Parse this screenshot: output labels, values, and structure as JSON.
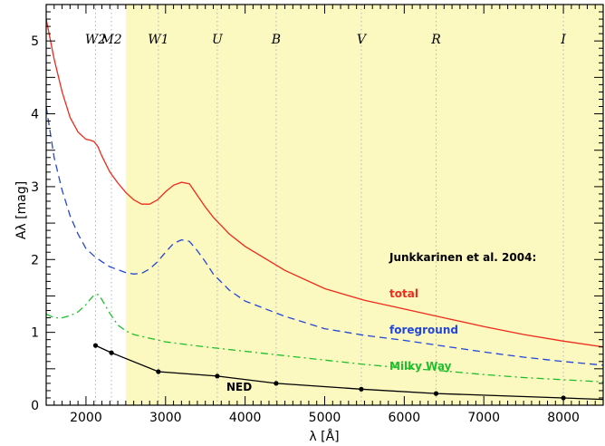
{
  "chart_data": {
    "type": "line",
    "xlabel": "λ [Å]",
    "ylabel": "Aλ [mag]",
    "xlim": [
      1500,
      8500
    ],
    "ylim": [
      0,
      5.5
    ],
    "x_ticks": [
      2000,
      3000,
      4000,
      5000,
      6000,
      7000,
      8000
    ],
    "y_ticks": [
      0,
      1,
      2,
      3,
      4,
      5
    ],
    "shaded_region": {
      "x": [
        2500,
        8500
      ],
      "color": "#fbf8c0"
    },
    "filter_bands": [
      {
        "label": "W2",
        "x": 2120
      },
      {
        "label": "M2",
        "x": 2320
      },
      {
        "label": "W1",
        "x": 2910
      },
      {
        "label": "U",
        "x": 3650
      },
      {
        "label": "B",
        "x": 4390
      },
      {
        "label": "V",
        "x": 5460
      },
      {
        "label": "R",
        "x": 6400
      },
      {
        "label": "I",
        "x": 8000
      }
    ],
    "annotations": {
      "reference": "Junkkarinen et al. 2004:",
      "ned": "NED"
    },
    "series": [
      {
        "name": "total",
        "color": "#ee2b1c",
        "dash": "solid",
        "x": [
          1500,
          1600,
          1700,
          1800,
          1900,
          2000,
          2050,
          2100,
          2150,
          2200,
          2300,
          2400,
          2500,
          2600,
          2700,
          2800,
          2900,
          3000,
          3100,
          3200,
          3300,
          3400,
          3500,
          3600,
          3800,
          4000,
          4500,
          5000,
          5500,
          6000,
          6500,
          7000,
          7500,
          8000,
          8500
        ],
        "values": [
          5.3,
          4.75,
          4.3,
          3.95,
          3.75,
          3.65,
          3.64,
          3.62,
          3.55,
          3.42,
          3.2,
          3.05,
          2.92,
          2.82,
          2.76,
          2.76,
          2.82,
          2.93,
          3.02,
          3.06,
          3.04,
          2.88,
          2.72,
          2.58,
          2.35,
          2.18,
          1.85,
          1.6,
          1.44,
          1.32,
          1.2,
          1.08,
          0.97,
          0.88,
          0.8
        ]
      },
      {
        "name": "foreground",
        "color": "#2346d8",
        "dash": "long-dash",
        "x": [
          1500,
          1600,
          1700,
          1800,
          1900,
          2000,
          2100,
          2200,
          2300,
          2400,
          2500,
          2600,
          2700,
          2800,
          2900,
          3000,
          3100,
          3200,
          3300,
          3400,
          3500,
          3600,
          3800,
          4000,
          4500,
          5000,
          5500,
          6000,
          6500,
          7000,
          7500,
          8000,
          8500
        ],
        "values": [
          4.1,
          3.4,
          2.95,
          2.6,
          2.35,
          2.15,
          2.05,
          1.97,
          1.9,
          1.86,
          1.82,
          1.8,
          1.81,
          1.87,
          1.97,
          2.1,
          2.22,
          2.27,
          2.25,
          2.12,
          1.97,
          1.8,
          1.58,
          1.43,
          1.22,
          1.05,
          0.96,
          0.89,
          0.81,
          0.73,
          0.66,
          0.6,
          0.55
        ]
      },
      {
        "name": "Milky Way",
        "color": "#1fbf2c",
        "dash": "dash-dot",
        "x": [
          1500,
          1600,
          1700,
          1800,
          1900,
          2000,
          2050,
          2100,
          2150,
          2200,
          2300,
          2400,
          2500,
          2600,
          2800,
          3000,
          3500,
          4000,
          4500,
          5000,
          5500,
          6000,
          6500,
          7000,
          7500,
          8000,
          8500
        ],
        "values": [
          1.25,
          1.2,
          1.2,
          1.23,
          1.28,
          1.38,
          1.45,
          1.51,
          1.52,
          1.45,
          1.26,
          1.1,
          1.02,
          0.97,
          0.92,
          0.87,
          0.8,
          0.74,
          0.68,
          0.62,
          0.56,
          0.51,
          0.47,
          0.42,
          0.38,
          0.35,
          0.32
        ]
      },
      {
        "name": "NED",
        "color": "#000000",
        "dash": "solid",
        "markers": true,
        "x": [
          2120,
          2320,
          2910,
          3650,
          4390,
          5460,
          6400,
          8000,
          8500
        ],
        "values": [
          0.82,
          0.72,
          0.46,
          0.4,
          0.3,
          0.22,
          0.16,
          0.1,
          0.08
        ]
      }
    ]
  }
}
